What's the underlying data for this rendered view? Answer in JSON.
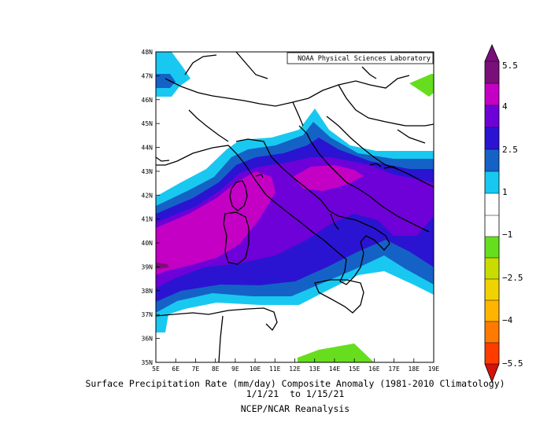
{
  "map": {
    "credit": "NOAA Physical Sciences Laboratory",
    "lat_labels": [
      "48N",
      "47N",
      "46N",
      "45N",
      "44N",
      "43N",
      "42N",
      "41N",
      "40N",
      "39N",
      "38N",
      "37N",
      "36N",
      "35N"
    ],
    "lon_labels": [
      "5E",
      "6E",
      "7E",
      "8E",
      "9E",
      "10E",
      "11E",
      "12E",
      "13E",
      "14E",
      "15E",
      "16E",
      "17E",
      "18E",
      "19E"
    ],
    "region": {
      "lon_min": 5,
      "lon_max": 19,
      "lat_min": 35,
      "lat_max": 48
    }
  },
  "caption": {
    "line1": "Surface Precipitation Rate (mm/day) Composite Anomaly (1981-2010 Climatology)",
    "line2": "1/1/21  to 1/15/21",
    "line3": "NCEP/NCAR Reanalysis"
  },
  "colorbar": {
    "tick_labels": [
      "5.5",
      "4",
      "2.5",
      "1",
      "−1",
      "−2.5",
      "−4",
      "−5.5"
    ],
    "colors": {
      "c55": "#7a0f7a",
      "c4": "#c400c4",
      "c3": "#6e00d8",
      "c25": "#2a14d2",
      "c2": "#1562c6",
      "c1": "#19c8f0",
      "neutral": "#ffffff",
      "n1": "#66de1e",
      "n15": "#c8dc00",
      "n25": "#f0d200",
      "n3": "#ffb400",
      "n4": "#ff7a00",
      "n5": "#ff3c00",
      "n55": "#d2140a"
    }
  }
}
